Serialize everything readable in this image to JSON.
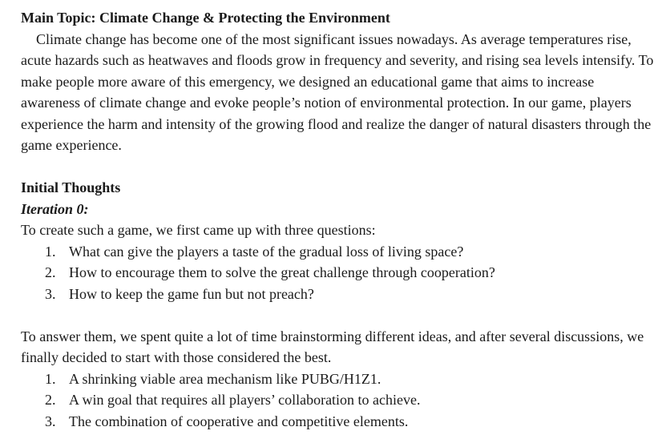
{
  "document": {
    "title": "Main Topic: Climate Change & Protecting the Environment",
    "intro_paragraph": "Climate change has become one of the most significant issues nowadays. As average temperatures rise, acute hazards such as heatwaves and floods grow in frequency and severity, and rising sea levels intensify. To make people more aware of this emergency, we designed an educational game that aims to increase awareness of climate change and evoke people’s notion of environmental protection. In our game, players experience the harm and intensity of the growing flood and realize the danger of natural disasters through the game experience.",
    "section_heading": "Initial Thoughts",
    "iteration_heading": "Iteration 0:",
    "questions_intro": "To create such a game, we first came up with three questions:",
    "questions": [
      {
        "num": "1.",
        "text": "What can give the players a taste of the gradual loss of living space?"
      },
      {
        "num": "2.",
        "text": "How to encourage them to solve the great challenge through cooperation?"
      },
      {
        "num": "3.",
        "text": "How to keep the game fun but not preach?"
      }
    ],
    "answers_intro": "To answer them, we spent quite a lot of time brainstorming different ideas, and after several discussions, we finally decided to start with those considered the best.",
    "answers": [
      {
        "num": "1.",
        "text": "A shrinking viable area mechanism like PUBG/H1Z1."
      },
      {
        "num": "2.",
        "text": "A win goal that requires all players’ collaboration to achieve."
      },
      {
        "num": "3.",
        "text": "The combination of cooperative and competitive elements."
      }
    ]
  }
}
